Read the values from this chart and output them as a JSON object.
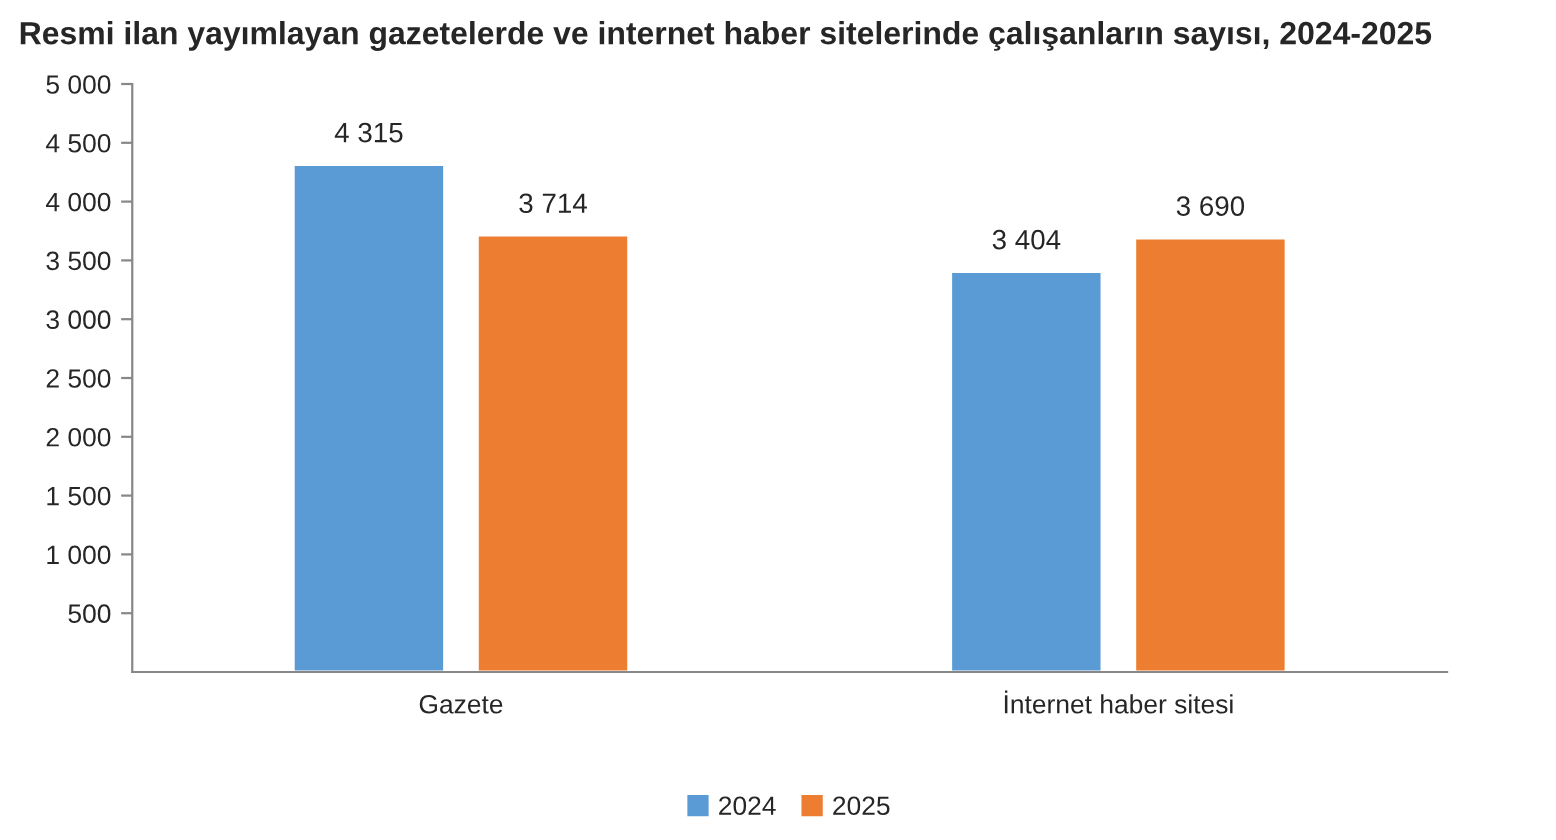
{
  "chart_data": {
    "type": "bar",
    "title": "Resmi ilan yayımlayan gazetelerde ve internet haber sitelerinde çalışanların sayısı, 2024-2025",
    "categories": [
      "Gazete",
      "İnternet haber sitesi"
    ],
    "series": [
      {
        "name": "2024",
        "color": "#5b9bd5",
        "values": [
          4315,
          3404
        ],
        "value_labels": [
          "4 315",
          "3 404"
        ]
      },
      {
        "name": "2025",
        "color": "#ed7d31",
        "values": [
          3714,
          3690
        ],
        "value_labels": [
          "3 714",
          "3 690"
        ]
      }
    ],
    "ylim": [
      0,
      5000
    ],
    "yticks": [
      500,
      {
        "value": 1000,
        "label": "1 000"
      },
      {
        "value": 1500,
        "label": "1 500"
      },
      {
        "value": 2000,
        "label": "2 000"
      },
      {
        "value": 2500,
        "label": "2 500"
      },
      {
        "value": 3000,
        "label": "3 000"
      },
      {
        "value": 3500,
        "label": "3 500"
      },
      {
        "value": 4000,
        "label": "4 000"
      },
      {
        "value": 4500,
        "label": "4 500"
      },
      {
        "value": 5000,
        "label": "5 000"
      }
    ],
    "grid": false,
    "legend": "bottom"
  }
}
